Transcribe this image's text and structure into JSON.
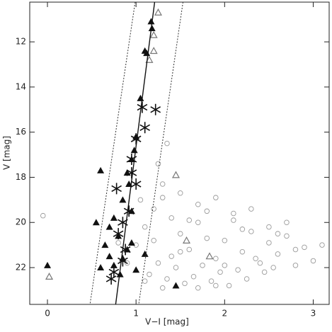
{
  "chart_data": {
    "type": "scatter",
    "xlabel": "V−I [mag]",
    "ylabel": "V [mag]",
    "xlim": [
      -0.2,
      3.18
    ],
    "ylim": [
      10.24,
      23.63
    ],
    "y_inverted": true,
    "xticks": [
      0,
      1,
      2,
      3
    ],
    "yticks": [
      12,
      14,
      16,
      18,
      20,
      22
    ],
    "series": [
      {
        "marker": "circle",
        "color": "#9a9a9a",
        "x": [
          1.0,
          1.1,
          1.2,
          1.3,
          1.4,
          1.5,
          1.6,
          1.7,
          1.8,
          1.9,
          2.0,
          2.1,
          2.2,
          2.3,
          2.4,
          2.5,
          2.6,
          2.7,
          2.8,
          2.9,
          3.0,
          1.15,
          1.25,
          1.35,
          1.45,
          1.55,
          1.65,
          1.75,
          1.85,
          1.95,
          2.05,
          2.15,
          2.25,
          2.35,
          2.45,
          2.55,
          1.05,
          1.3,
          1.5,
          1.7,
          1.9,
          2.1,
          2.3,
          2.5,
          2.7,
          0.9,
          0.8,
          1.2,
          1.4,
          1.6,
          1.8,
          2.0,
          2.2,
          1.1,
          1.3,
          1.5,
          1.7,
          1.9,
          -0.05,
          3.1,
          1.35,
          1.25,
          2.6,
          2.8
        ],
        "values": [
          21.0,
          20.2,
          19.4,
          18.9,
          19.8,
          20.5,
          21.2,
          20.0,
          19.5,
          21.6,
          20.8,
          19.9,
          21.3,
          20.4,
          21.8,
          20.9,
          21.4,
          20.6,
          21.9,
          21.1,
          21.7,
          22.3,
          21.8,
          22.5,
          22.0,
          22.7,
          22.4,
          21.9,
          22.6,
          22.2,
          22.8,
          22.1,
          22.5,
          21.6,
          22.2,
          22.0,
          19.0,
          18.3,
          18.7,
          19.2,
          18.9,
          19.6,
          19.4,
          20.2,
          20.0,
          21.8,
          20.9,
          20.8,
          21.5,
          19.9,
          20.7,
          21.9,
          20.3,
          22.6,
          22.9,
          21.3,
          22.9,
          22.8,
          19.7,
          21.0,
          16.5,
          17.4,
          20.5,
          21.2
        ]
      },
      {
        "marker": "triangle",
        "color": "#111111",
        "x": [
          1.17,
          1.18,
          1.12,
          1.1,
          1.05,
          1.0,
          0.98,
          0.95,
          0.9,
          0.92,
          0.85,
          0.95,
          0.75,
          0.7,
          0.8,
          0.65,
          0.9,
          0.85,
          0.75,
          0.6,
          1.0,
          0.0,
          0.55,
          0.6,
          1.45,
          0.95,
          0.82,
          1.1,
          0.7
        ],
        "values": [
          11.1,
          11.4,
          12.5,
          12.4,
          14.5,
          16.2,
          16.8,
          17.2,
          17.8,
          18.3,
          19.0,
          19.5,
          19.8,
          20.2,
          20.6,
          21.0,
          21.2,
          21.6,
          21.9,
          22.0,
          22.1,
          21.9,
          20.0,
          17.7,
          22.8,
          20.9,
          22.3,
          21.4,
          21.5
        ]
      },
      {
        "marker": "open-triangle",
        "color": "#777777",
        "x": [
          1.25,
          1.2,
          1.2,
          1.15,
          1.45,
          1.57,
          1.83,
          0.02
        ],
        "values": [
          10.7,
          11.7,
          12.4,
          12.8,
          17.9,
          20.8,
          21.5,
          22.4
        ]
      },
      {
        "marker": "star",
        "color": "#111111",
        "x": [
          1.07,
          1.22,
          1.1,
          1.0,
          0.95,
          0.95,
          0.78,
          1.0,
          0.92,
          0.85,
          0.8,
          0.88,
          0.85,
          0.75,
          0.72
        ],
        "values": [
          14.9,
          15.0,
          15.8,
          16.3,
          17.2,
          17.8,
          18.5,
          18.3,
          19.5,
          20.0,
          20.5,
          21.2,
          21.7,
          22.2,
          22.5
        ]
      },
      {
        "marker": "line",
        "color": "#111111",
        "dash": false,
        "x": [
          1.21,
          0.77
        ],
        "values": [
          10.24,
          23.63
        ]
      },
      {
        "marker": "line",
        "color": "#333333",
        "dash": true,
        "x": [
          0.99,
          0.48
        ],
        "values": [
          10.24,
          23.63
        ]
      },
      {
        "marker": "line",
        "color": "#333333",
        "dash": true,
        "x": [
          1.53,
          1.03
        ],
        "values": [
          10.24,
          23.63
        ]
      }
    ]
  }
}
